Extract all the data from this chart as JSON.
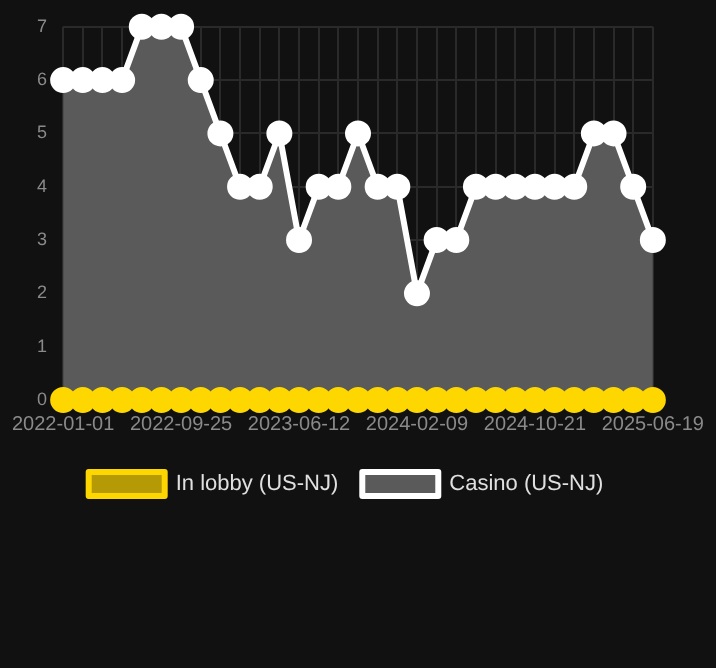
{
  "chart_data": {
    "type": "line",
    "categories": [
      "2022-01-01",
      null,
      null,
      null,
      null,
      null,
      "2022-09-25",
      null,
      null,
      null,
      null,
      null,
      "2023-06-12",
      null,
      null,
      null,
      null,
      null,
      "2024-02-09",
      null,
      null,
      null,
      null,
      null,
      "2024-10-21",
      null,
      null,
      null,
      null,
      null,
      "2025-06-19"
    ],
    "series": [
      {
        "name": "In lobby (US-NJ)",
        "color": "#ffd700",
        "values": [
          0,
          0,
          0,
          0,
          0,
          0,
          0,
          0,
          0,
          0,
          0,
          0,
          0,
          0,
          0,
          0,
          0,
          0,
          0,
          0,
          0,
          0,
          0,
          0,
          0,
          0,
          0,
          0,
          0,
          0,
          0
        ]
      },
      {
        "name": "Casino (US-NJ)",
        "type": "area",
        "color": "#ffffff",
        "values": [
          6,
          6,
          6,
          6,
          7,
          7,
          7,
          6,
          5,
          4,
          4,
          5,
          3,
          4,
          4,
          5,
          4,
          4,
          2,
          3,
          3,
          4,
          4,
          4,
          4,
          4,
          4,
          5,
          5,
          4,
          3
        ]
      }
    ],
    "ylim": [
      0,
      7
    ],
    "yticks": [
      0,
      1,
      2,
      3,
      4,
      5,
      6,
      7
    ],
    "grid": true,
    "legend": "bottom",
    "marker": "circle"
  }
}
